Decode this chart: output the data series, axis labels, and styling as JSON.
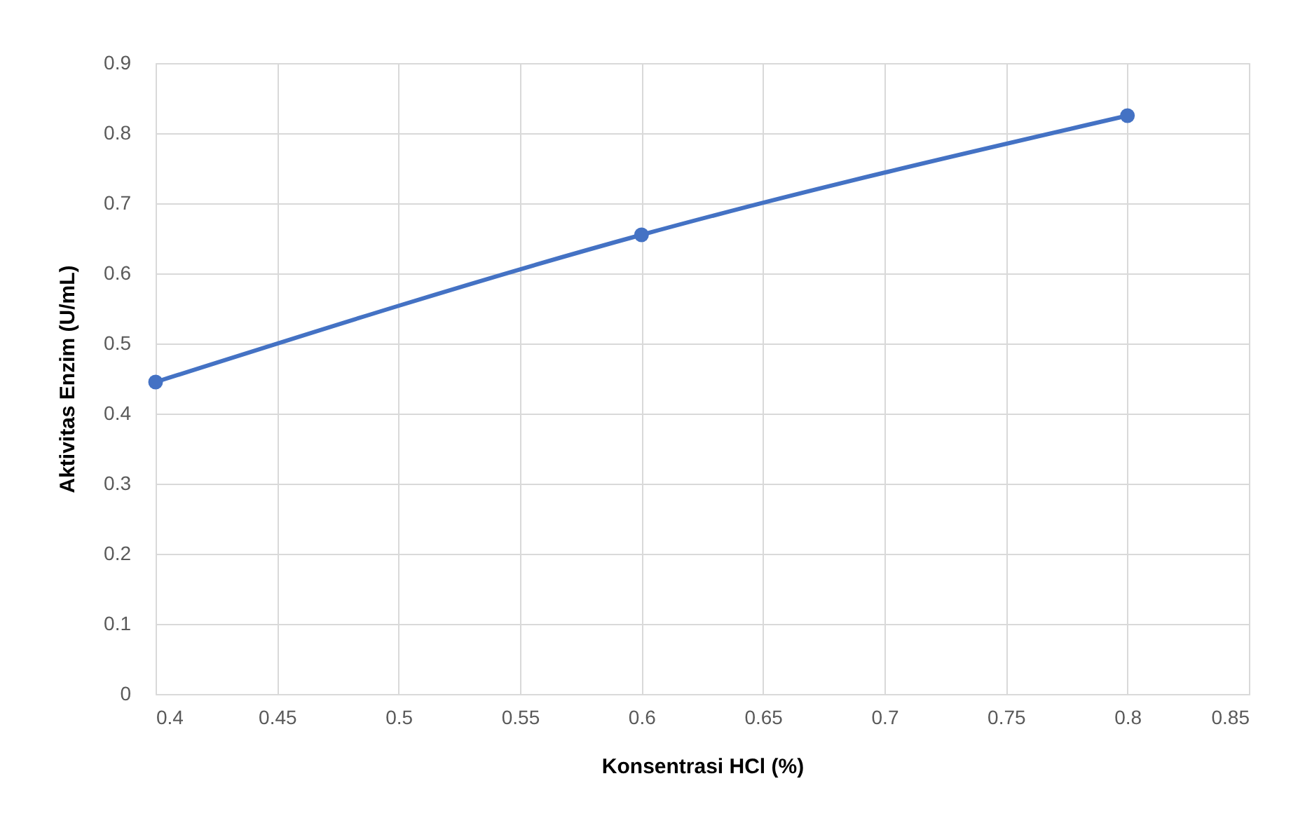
{
  "chart_data": {
    "type": "line",
    "xlabel": "Konsentrasi HCl (%)",
    "ylabel": "Aktivitas Enzim (U/mL)",
    "x": [
      0.4,
      0.6,
      0.8
    ],
    "series": [
      {
        "color": "#4472c4",
        "values": [
          0.445,
          0.655,
          0.825
        ]
      }
    ],
    "xlim": [
      0.4,
      0.85
    ],
    "xticks": [
      0.4,
      0.45,
      0.5,
      0.55,
      0.6,
      0.65,
      0.7,
      0.75,
      0.8,
      0.85
    ],
    "ylim": [
      0,
      0.9
    ],
    "yticks": [
      0,
      0.1,
      0.2,
      0.3,
      0.4,
      0.5,
      0.6,
      0.7,
      0.8,
      0.9
    ],
    "grid": true,
    "marker": "circle",
    "line_style": "solid",
    "legend": false
  }
}
